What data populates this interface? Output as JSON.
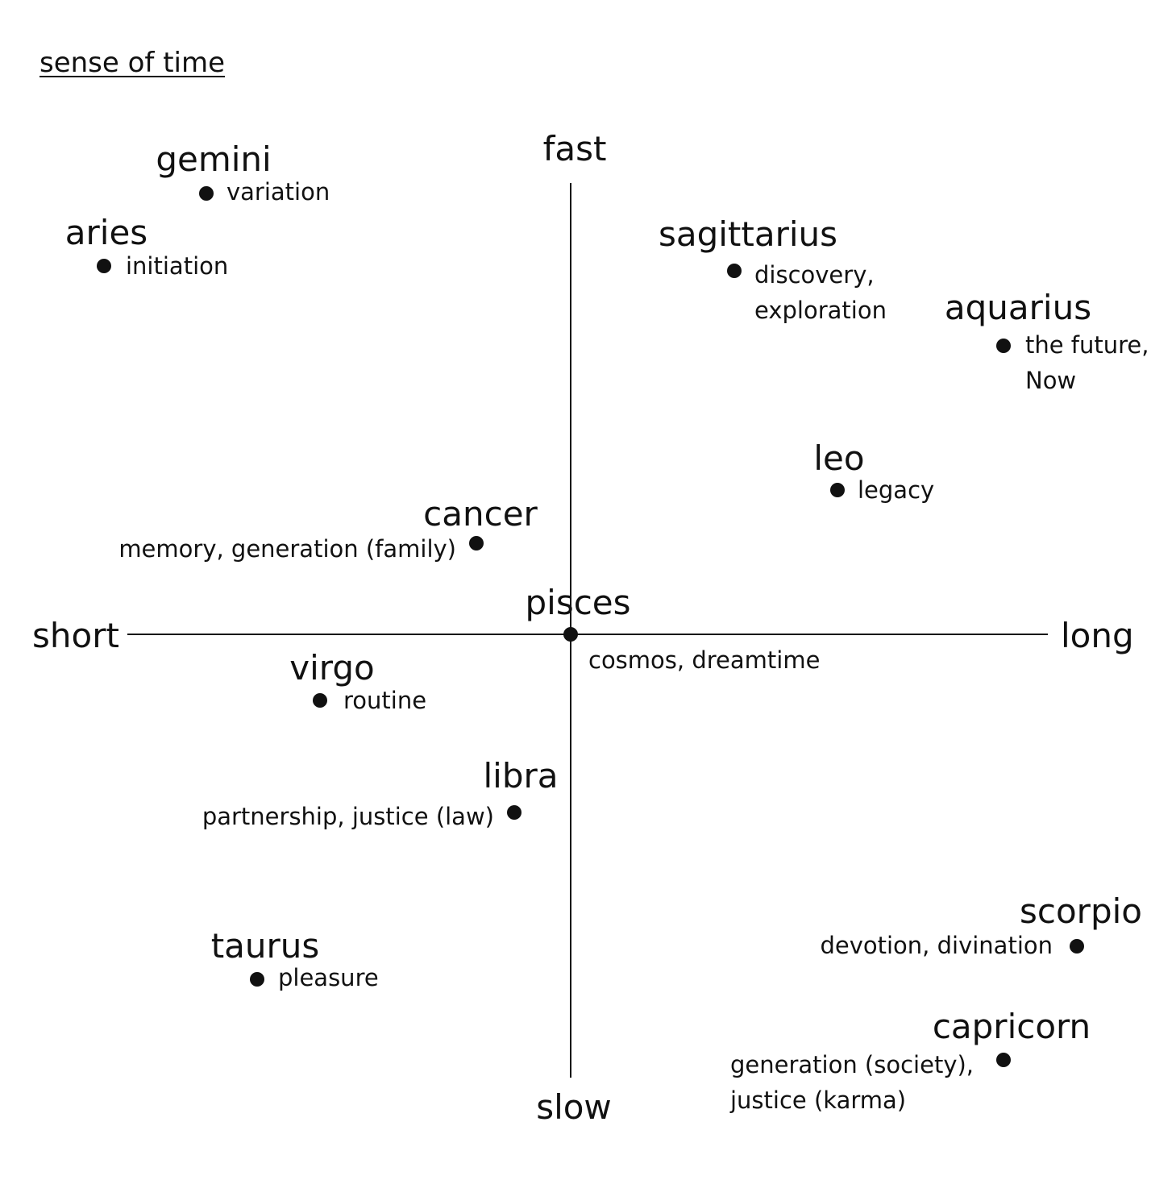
{
  "title": "sense of time",
  "axes": {
    "x": {
      "min_label": "short",
      "max_label": "long"
    },
    "y": {
      "min_label": "slow",
      "max_label": "fast"
    }
  },
  "colors": {
    "ink": "#111111",
    "background": "#ffffff"
  },
  "signs": [
    {
      "id": "gemini",
      "name": "gemini",
      "keywords": [
        "variation"
      ]
    },
    {
      "id": "aries",
      "name": "aries",
      "keywords": [
        "initiation"
      ]
    },
    {
      "id": "sagittarius",
      "name": "sagittarius",
      "keywords": [
        "discovery,",
        "exploration"
      ]
    },
    {
      "id": "aquarius",
      "name": "aquarius",
      "keywords": [
        "the future,",
        "Now"
      ]
    },
    {
      "id": "leo",
      "name": "leo",
      "keywords": [
        "legacy"
      ]
    },
    {
      "id": "cancer",
      "name": "cancer",
      "keywords": [
        "memory, generation (family)"
      ]
    },
    {
      "id": "pisces",
      "name": "pisces",
      "keywords": [
        "cosmos, dreamtime"
      ]
    },
    {
      "id": "virgo",
      "name": "virgo",
      "keywords": [
        "routine"
      ]
    },
    {
      "id": "libra",
      "name": "libra",
      "keywords": [
        "partnership, justice (law)"
      ]
    },
    {
      "id": "scorpio",
      "name": "scorpio",
      "keywords": [
        "devotion, divination"
      ]
    },
    {
      "id": "taurus",
      "name": "taurus",
      "keywords": [
        "pleasure"
      ]
    },
    {
      "id": "capricorn",
      "name": "capricorn",
      "keywords": [
        "generation (society),",
        "justice (karma)"
      ]
    }
  ]
}
